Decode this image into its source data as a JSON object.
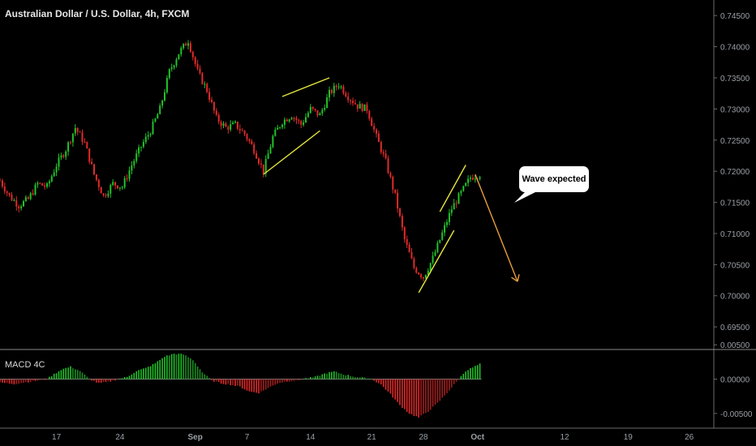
{
  "title": "Australian Dollar / U.S. Dollar, 4h, FXCM",
  "colors": {
    "up": "#22c22a",
    "down": "#e02a2a",
    "wedge": "#e6e63c",
    "arrow": "#e79e3c",
    "axis": "#9aa0a6"
  },
  "annotations": {
    "bubble_text": "Wave expected"
  },
  "chart_data": [
    {
      "type": "candlestick",
      "title": "Australian Dollar / U.S. Dollar, 4h, FXCM",
      "ylim": [
        0.6915,
        0.7475
      ],
      "y_ticks": [
        "0.74500",
        "0.74000",
        "0.73500",
        "0.73000",
        "0.72500",
        "0.72000",
        "0.71500",
        "0.71000",
        "0.70500",
        "0.70000",
        "0.69500"
      ],
      "x_ticks": [
        "17",
        "24",
        "Sep",
        "7",
        "14",
        "21",
        "28",
        "Oct",
        "12",
        "19",
        "26"
      ],
      "close_path": [
        [
          0,
          0.7185
        ],
        [
          4,
          0.716
        ],
        [
          8,
          0.7145
        ],
        [
          12,
          0.7155
        ],
        [
          16,
          0.718
        ],
        [
          20,
          0.7175
        ],
        [
          24,
          0.721
        ],
        [
          28,
          0.7235
        ],
        [
          32,
          0.727
        ],
        [
          36,
          0.7245
        ],
        [
          40,
          0.7195
        ],
        [
          44,
          0.716
        ],
        [
          48,
          0.718
        ],
        [
          52,
          0.7175
        ],
        [
          56,
          0.721
        ],
        [
          60,
          0.724
        ],
        [
          64,
          0.7265
        ],
        [
          68,
          0.73
        ],
        [
          72,
          0.736
        ],
        [
          76,
          0.739
        ],
        [
          80,
          0.741
        ],
        [
          84,
          0.736
        ],
        [
          88,
          0.733
        ],
        [
          92,
          0.7285
        ],
        [
          96,
          0.727
        ],
        [
          100,
          0.7275
        ],
        [
          104,
          0.726
        ],
        [
          108,
          0.7235
        ],
        [
          112,
          0.72
        ],
        [
          116,
          0.7255
        ],
        [
          120,
          0.728
        ],
        [
          124,
          0.729
        ],
        [
          128,
          0.7275
        ],
        [
          132,
          0.73
        ],
        [
          136,
          0.729
        ],
        [
          140,
          0.7325
        ],
        [
          144,
          0.734
        ],
        [
          148,
          0.732
        ],
        [
          152,
          0.7305
        ],
        [
          156,
          0.73
        ],
        [
          160,
          0.7255
        ],
        [
          164,
          0.7215
        ],
        [
          168,
          0.716
        ],
        [
          172,
          0.709
        ],
        [
          176,
          0.7045
        ],
        [
          180,
          0.703
        ],
        [
          184,
          0.706
        ],
        [
          188,
          0.71
        ],
        [
          192,
          0.714
        ],
        [
          196,
          0.7165
        ],
        [
          200,
          0.719
        ],
        [
          204,
          0.7195
        ]
      ],
      "wedges": [
        {
          "lower": [
            [
              112,
              0.7195
            ],
            [
              136,
              0.7265
            ]
          ],
          "upper": [
            [
              120,
              0.732
            ],
            [
              140,
              0.735
            ]
          ]
        },
        {
          "lower": [
            [
              178,
              0.7005
            ],
            [
              193,
              0.7105
            ]
          ],
          "upper": [
            [
              187,
              0.7135
            ],
            [
              198,
              0.721
            ]
          ]
        }
      ],
      "arrow": {
        "from": [
          202,
          0.7195
        ],
        "to": [
          220,
          0.7023
        ]
      }
    },
    {
      "type": "bar",
      "title": "MACD 4C",
      "ylim": [
        -0.0062,
        0.0042
      ],
      "y_ticks": [
        "0.00500",
        "0.00000",
        "-0.00500"
      ],
      "histogram_path": [
        [
          0,
          -0.0005
        ],
        [
          6,
          -0.0007
        ],
        [
          12,
          -0.0004
        ],
        [
          16,
          -0.0002
        ],
        [
          20,
          0.0
        ],
        [
          22,
          0.0005
        ],
        [
          26,
          0.0014
        ],
        [
          30,
          0.0018
        ],
        [
          34,
          0.0012
        ],
        [
          38,
          0.0
        ],
        [
          42,
          -0.0006
        ],
        [
          46,
          -0.0004
        ],
        [
          50,
          0.0
        ],
        [
          54,
          0.0003
        ],
        [
          58,
          0.0012
        ],
        [
          62,
          0.0016
        ],
        [
          66,
          0.0023
        ],
        [
          70,
          0.0033
        ],
        [
          74,
          0.0037
        ],
        [
          78,
          0.0036
        ],
        [
          82,
          0.0028
        ],
        [
          86,
          0.001
        ],
        [
          90,
          -0.0002
        ],
        [
          94,
          -0.0006
        ],
        [
          98,
          -0.0008
        ],
        [
          102,
          -0.0011
        ],
        [
          106,
          -0.0018
        ],
        [
          110,
          -0.002
        ],
        [
          114,
          -0.0013
        ],
        [
          118,
          -0.0006
        ],
        [
          122,
          -0.0003
        ],
        [
          126,
          -0.0002
        ],
        [
          130,
          0.0001
        ],
        [
          134,
          0.0003
        ],
        [
          138,
          0.0008
        ],
        [
          142,
          0.0011
        ],
        [
          146,
          0.0007
        ],
        [
          150,
          0.0004
        ],
        [
          154,
          0.0002
        ],
        [
          158,
          0.0
        ],
        [
          162,
          -0.0008
        ],
        [
          166,
          -0.0022
        ],
        [
          170,
          -0.0038
        ],
        [
          174,
          -0.005
        ],
        [
          178,
          -0.0056
        ],
        [
          182,
          -0.0047
        ],
        [
          186,
          -0.0035
        ],
        [
          190,
          -0.002
        ],
        [
          194,
          -0.0004
        ],
        [
          198,
          0.0012
        ],
        [
          204,
          0.0022
        ]
      ]
    }
  ]
}
